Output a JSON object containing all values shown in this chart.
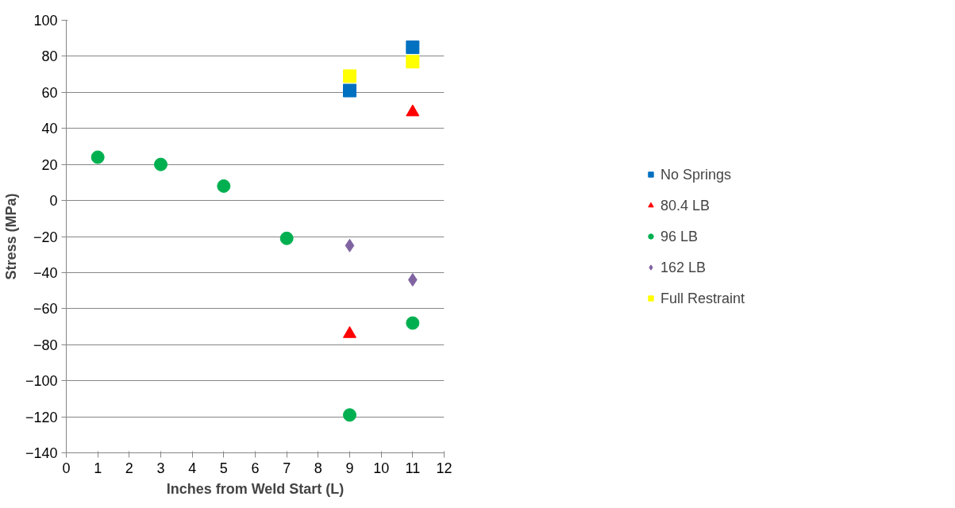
{
  "chart_data": {
    "type": "scatter",
    "xlabel": "Inches from Weld Start (L)",
    "ylabel": "Stress (MPa)",
    "xlim": [
      0,
      12
    ],
    "xticks": [
      0,
      1,
      2,
      3,
      4,
      5,
      6,
      7,
      8,
      9,
      10,
      11,
      12
    ],
    "ylim": [
      -140,
      100
    ],
    "yticks": [
      -140,
      -120,
      -100,
      -80,
      -60,
      -40,
      -20,
      0,
      20,
      40,
      60,
      80,
      100
    ],
    "grid": "y",
    "legend": "right",
    "series": [
      {
        "name": "No Springs",
        "color": "#0070c0",
        "marker": "square",
        "x": [
          9,
          11
        ],
        "values": [
          61,
          85
        ]
      },
      {
        "name": "80.4 LB",
        "color": "#ff0000",
        "marker": "triangle",
        "x": [
          9,
          11
        ],
        "values": [
          -74,
          49
        ]
      },
      {
        "name": "96 LB",
        "color": "#00b050",
        "marker": "circle",
        "x": [
          1,
          3,
          5,
          7,
          9,
          11
        ],
        "values": [
          24,
          20,
          8,
          -21,
          -119,
          -68
        ]
      },
      {
        "name": "162 LB",
        "color": "#8064a2",
        "marker": "diamond",
        "x": [
          9,
          11
        ],
        "values": [
          -25,
          -44
        ]
      },
      {
        "name": "Full Restraint",
        "color": "#ffff00",
        "marker": "square",
        "x": [
          9,
          11
        ],
        "values": [
          69,
          77
        ]
      }
    ]
  }
}
